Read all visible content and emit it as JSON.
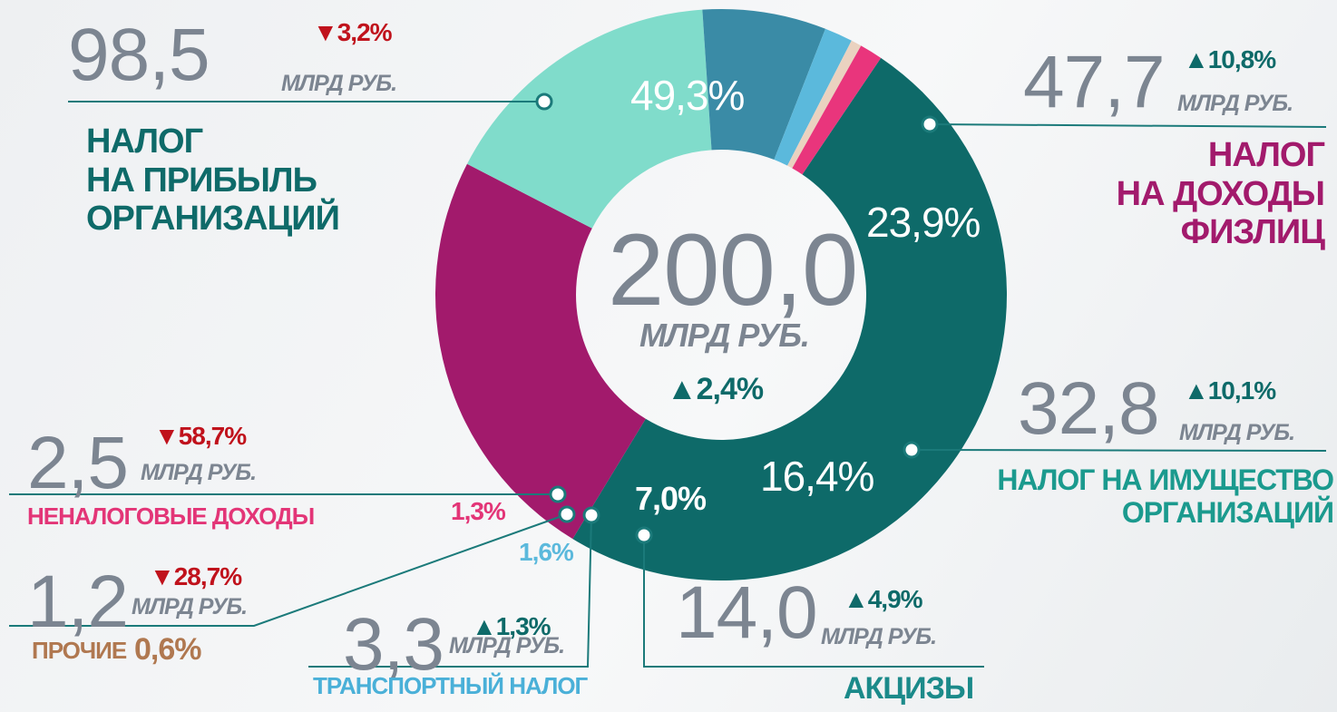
{
  "chart_data": {
    "type": "pie",
    "donut": true,
    "categories": [
      "НАЛОГ\nНА ПРИБЫЛЬ\nОРГАНИЗАЦИЙ",
      "НАЛОГ\nНА ДОХОДЫ\nФИЗЛИЦ",
      "НАЛОГ НА ИМУЩЕСТВО\nОРГАНИЗАЦИЙ",
      "АКЦИЗЫ",
      "ТРАНСПОРТНЫЙ НАЛОГ",
      "ПРОЧИЕ",
      "НЕНАЛОГОВЫЕ ДОХОДЫ"
    ],
    "values": [
      49.3,
      23.9,
      16.4,
      7.0,
      1.6,
      0.6,
      1.3
    ],
    "value_labels": [
      "49,3%",
      "23,9%",
      "16,4%",
      "7,0%",
      "1,6%",
      "0,6%",
      "1,3%"
    ],
    "colors": [
      "#0e6a69",
      "#a21a6c",
      "#80dccb",
      "#3a8ba6",
      "#5bb9dc",
      "#ead2c0",
      "#e9357c"
    ],
    "amounts": [
      "98,5",
      "47,7",
      "32,8",
      "14,0",
      "3,3",
      "1,2",
      "2,5"
    ],
    "changes": [
      "▼3,2%",
      "▲10,8%",
      "▲10,1%",
      "▲4,9%",
      "▲1,3%",
      "▼28,7%",
      "▼58,7%"
    ],
    "change_colors": [
      "#c0121c",
      "#0e6a69",
      "#0e6a69",
      "#0e6a69",
      "#0e6a69",
      "#c0121c",
      "#c0121c"
    ],
    "unit": "МЛРД РУБ.",
    "total": "200,0",
    "total_change": "▲2,4%"
  }
}
